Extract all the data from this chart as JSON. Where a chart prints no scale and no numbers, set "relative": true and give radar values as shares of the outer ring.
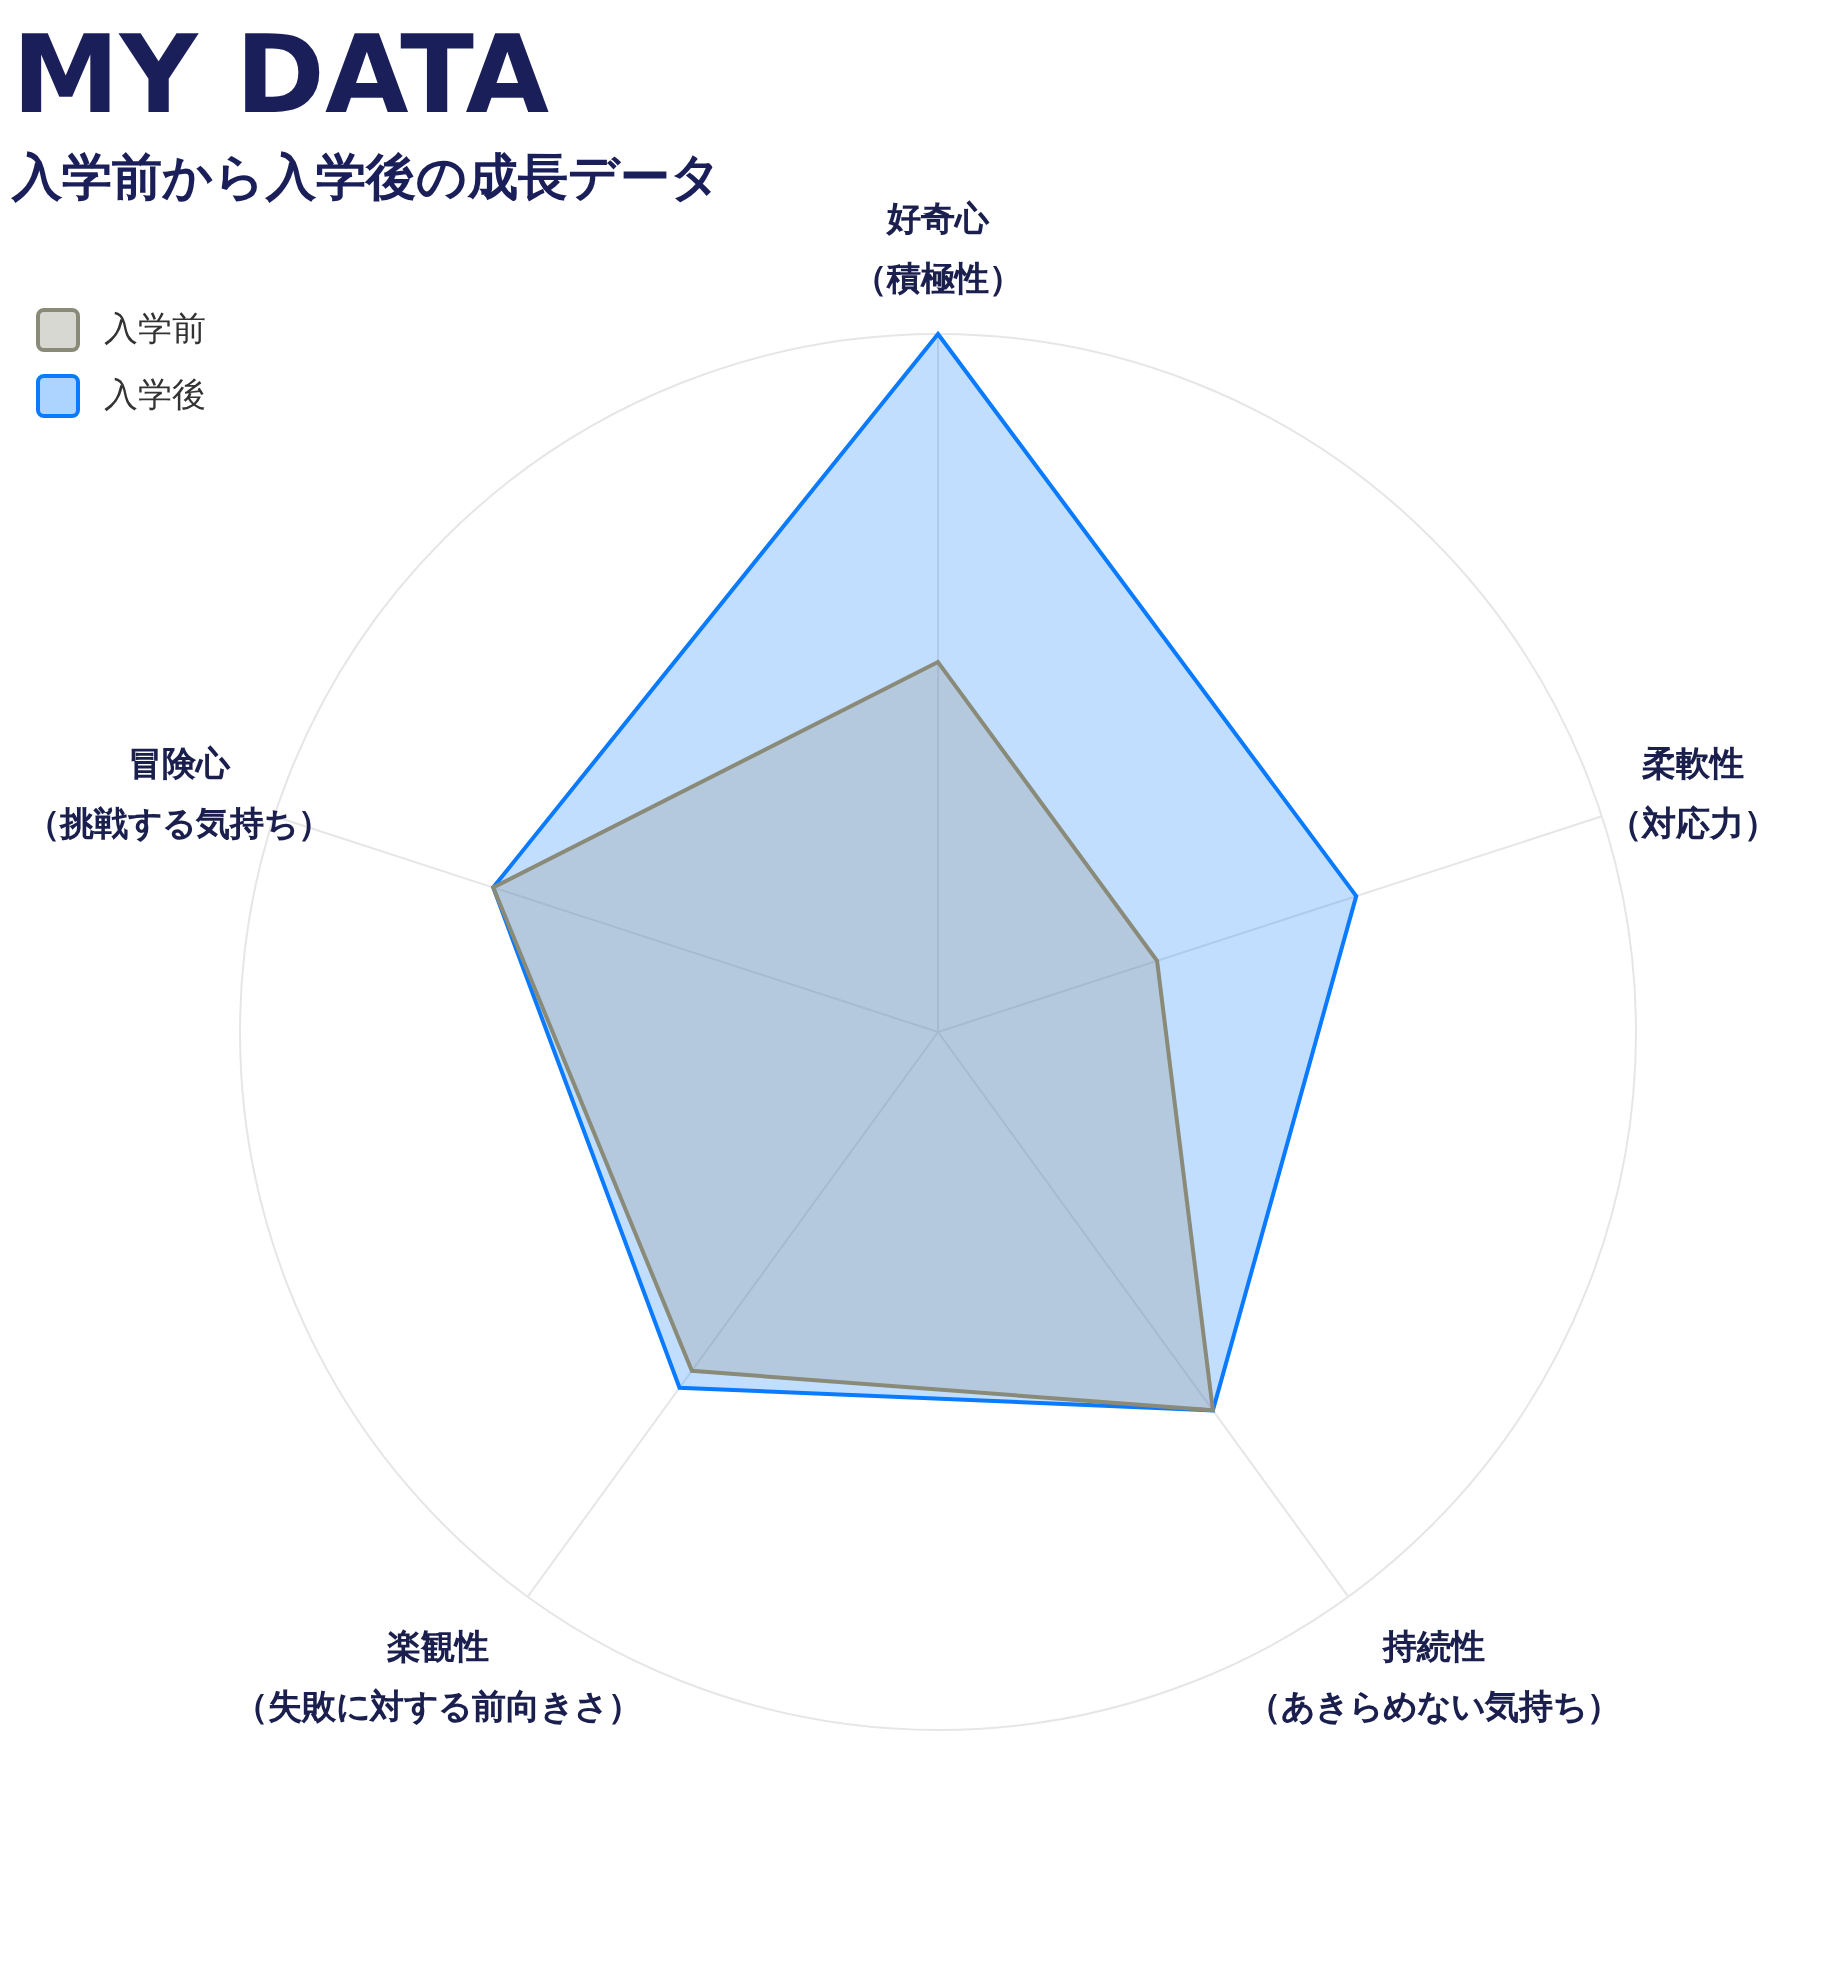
{
  "chart_data": {
    "type": "radar",
    "title": "MY DATA",
    "subtitle": "入学前から入学後の成長データ",
    "categories": [
      "好奇心（積極性）",
      "柔軟性（対応力）",
      "持続性（あきらめない気持ち）",
      "楽観性（失敗に対する前向きさ）",
      "冒険心（挑戦する気持ち）"
    ],
    "relative": true,
    "grid": true,
    "legend": "top left",
    "series": [
      {
        "name": "入学前",
        "color": "#8a8a78",
        "values": [
          0.53,
          0.33,
          0.67,
          0.6,
          0.67
        ]
      },
      {
        "name": "入学後",
        "color": "#0a7aff",
        "values": [
          1,
          0.63,
          0.67,
          0.63,
          0.67
        ]
      }
    ]
  }
}
